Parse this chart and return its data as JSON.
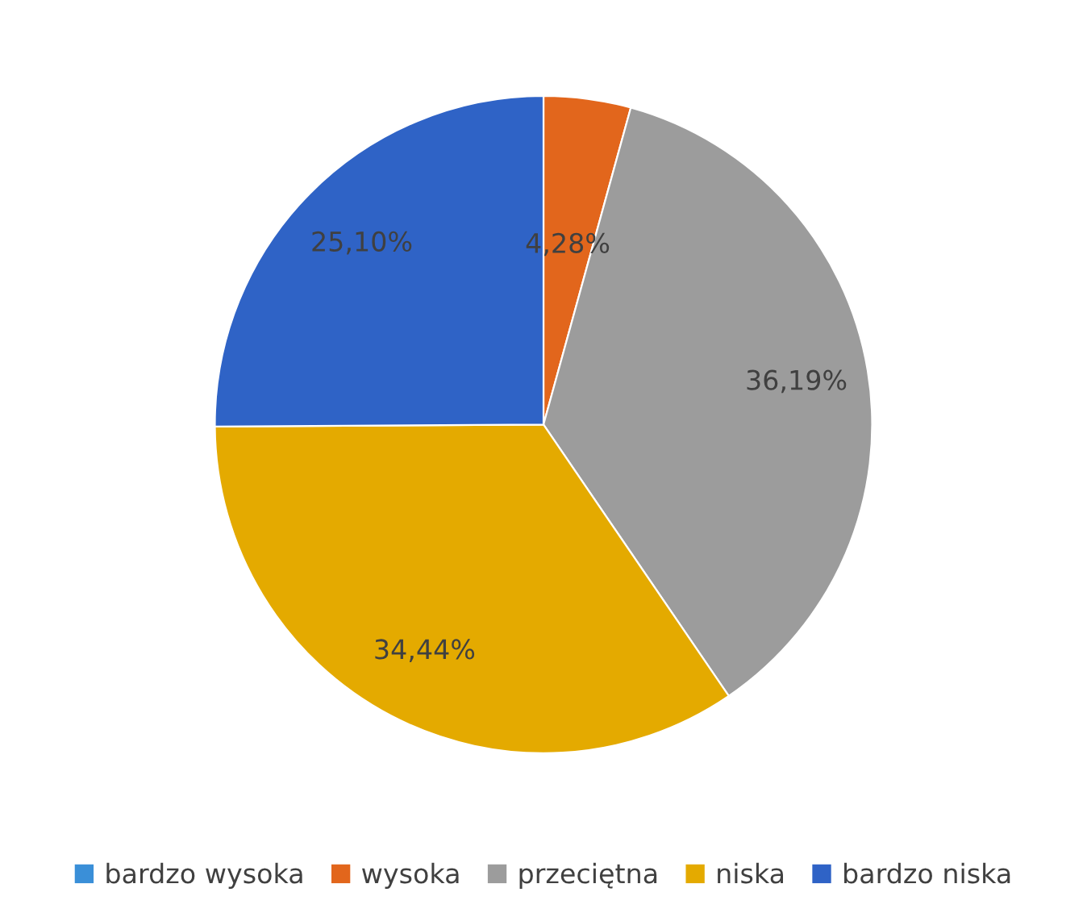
{
  "chart_data": {
    "type": "pie",
    "categories": [
      "bardzo wysoka",
      "wysoka",
      "przeciętna",
      "niska",
      "bardzo niska"
    ],
    "values": [
      0,
      4.28,
      36.19,
      34.44,
      25.1
    ],
    "value_labels": [
      null,
      "4,28%",
      "36,19%",
      "34,44%",
      "25,10%"
    ],
    "colors": [
      "#3a8fd8",
      "#e2661c",
      "#9c9c9c",
      "#e4aa00",
      "#2f63c6"
    ],
    "legend": "bottom"
  }
}
